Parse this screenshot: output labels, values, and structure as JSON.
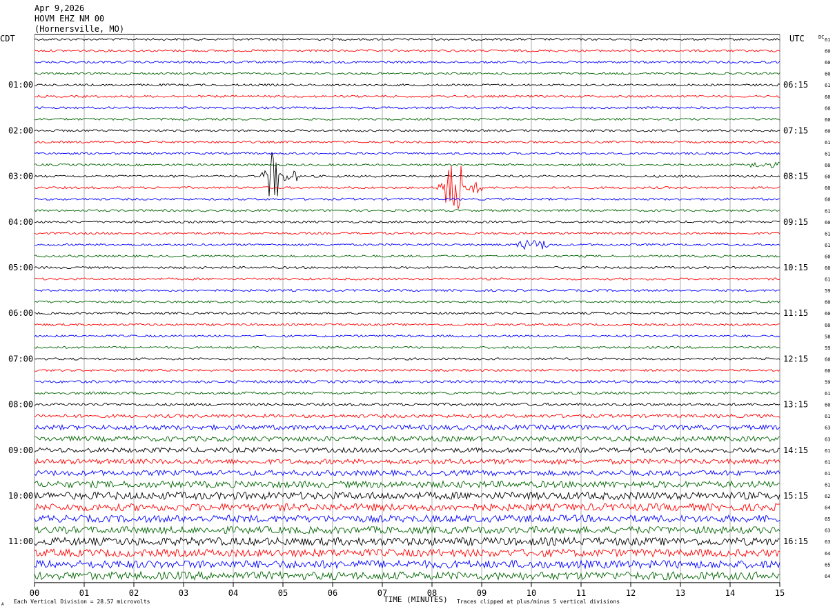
{
  "header": {
    "date": "Apr 9,2026",
    "station": "HOVM EHZ NM 00",
    "location": "(Hornersville, MO)"
  },
  "labels": {
    "left_tz": "CDT",
    "right_tz": "UTC",
    "dc_label": "DC",
    "xlabel": "TIME (MINUTES)",
    "scale_note": "Each Vertical Division =   28.57 microvolts",
    "clip_note": "Traces clipped at plus/minus 5 vertical divisions",
    "corner_mark": "A"
  },
  "colors": {
    "black": "#000000",
    "red": "#ff0000",
    "blue": "#0000ff",
    "green": "#006400",
    "grid": "#888888"
  },
  "chart_data": {
    "type": "line",
    "title": "HOVM EHZ NM 00",
    "xlabel": "TIME (MINUTES)",
    "xlim": [
      0,
      15
    ],
    "x_ticks": [
      "00",
      "01",
      "02",
      "03",
      "04",
      "05",
      "06",
      "07",
      "08",
      "09",
      "10",
      "11",
      "12",
      "13",
      "14",
      "15"
    ],
    "trace_minutes": 15,
    "trace_colors": [
      "black",
      "red",
      "blue",
      "green"
    ],
    "left_hour_labels": [
      "01:00",
      "02:00",
      "03:00",
      "04:00",
      "05:00",
      "06:00",
      "07:00",
      "08:00",
      "09:00",
      "10:00",
      "11:00"
    ],
    "right_hour_labels": [
      "06:15",
      "07:15",
      "08:15",
      "09:15",
      "10:15",
      "11:15",
      "12:15",
      "13:15",
      "14:15",
      "15:15",
      "16:15"
    ],
    "first_labeled_trace": 4,
    "dc_offsets": [
      61,
      60,
      60,
      60,
      61,
      60,
      60,
      60,
      60,
      61,
      61,
      60,
      60,
      60,
      60,
      61,
      60,
      61,
      61,
      60,
      60,
      61,
      59,
      60,
      60,
      60,
      58,
      59,
      60,
      60,
      59,
      61,
      60,
      61,
      63,
      63,
      61,
      61,
      61,
      61,
      62,
      64,
      65,
      63,
      63,
      64,
      65,
      64
    ],
    "noise_levels": [
      1,
      1,
      1,
      1,
      1,
      1,
      1,
      1,
      1,
      1,
      1,
      1,
      1,
      1,
      1,
      1,
      1,
      1,
      1,
      1,
      1,
      1,
      1,
      1,
      1,
      1,
      1,
      1,
      1,
      1,
      1.2,
      1.2,
      1.3,
      1.6,
      2.2,
      2.3,
      2.2,
      2.3,
      2.4,
      3,
      3.4,
      3.3,
      3.2,
      3.2,
      3.6,
      3.4,
      3.6,
      3.6
    ],
    "events": [
      {
        "trace": 12,
        "minute_start": 4.7,
        "minute_end": 4.9,
        "amplitude": "clipped"
      },
      {
        "trace": 13,
        "minute_start": 8.25,
        "minute_end": 8.6,
        "amplitude": "clipped"
      },
      {
        "trace": 18,
        "minute_start": 9.85,
        "minute_end": 9.95,
        "amplitude": "moderate"
      },
      {
        "trace": 11,
        "minute_start": 14.5,
        "minute_end": 14.9,
        "amplitude": "small"
      }
    ],
    "scale_microvolts_per_division": 28.57,
    "clip_divisions": 5
  }
}
